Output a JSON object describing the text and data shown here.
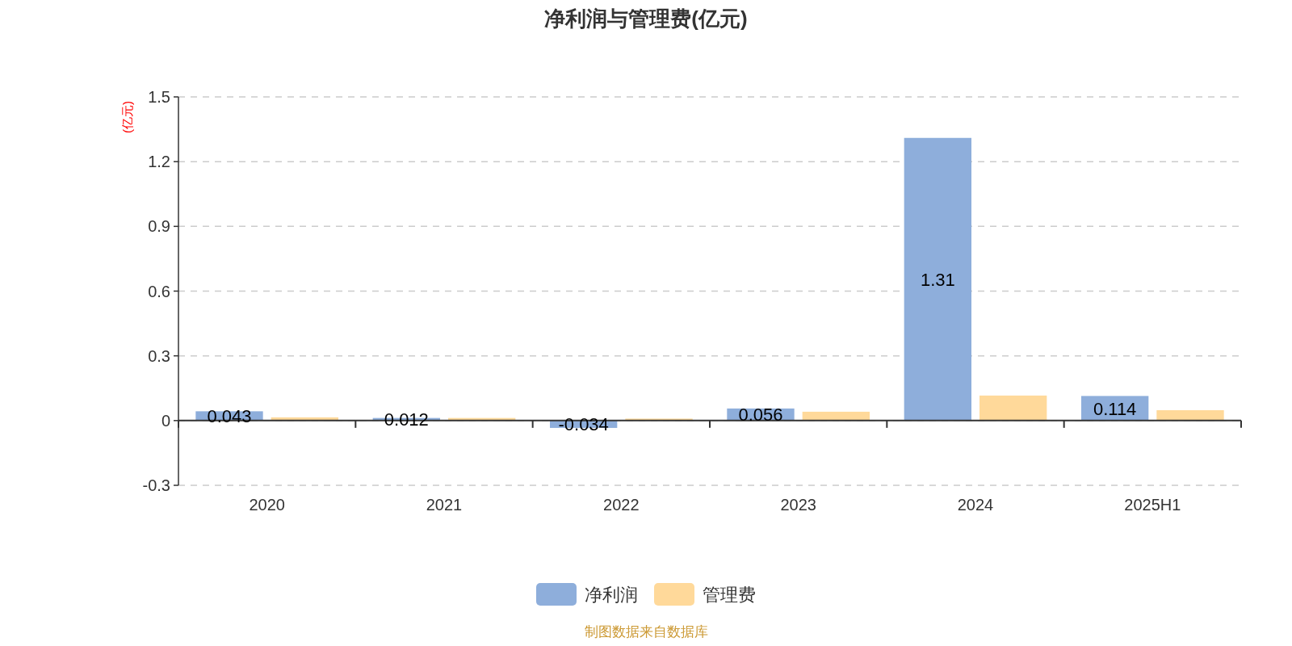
{
  "chart_data": {
    "type": "bar",
    "title": "净利润与管理费(亿元)",
    "ylabel": "(亿元)",
    "categories": [
      "2020",
      "2021",
      "2022",
      "2023",
      "2024",
      "2025H1"
    ],
    "series": [
      {
        "name": "净利润",
        "color": "#8eaedb",
        "values": [
          0.043,
          0.012,
          -0.034,
          0.056,
          1.31,
          0.114
        ],
        "value_labels": [
          "0.043",
          "0.012",
          "-0.034",
          "0.056",
          "1.31",
          "0.114"
        ]
      },
      {
        "name": "管理费",
        "color": "#ffd99a",
        "values": [
          0.015,
          0.012,
          0.009,
          0.041,
          0.116,
          0.048
        ]
      }
    ],
    "ylim": [
      -0.3,
      1.5
    ],
    "yticks": [
      -0.3,
      0,
      0.3,
      0.6,
      0.9,
      1.2,
      1.5
    ],
    "grid": "y",
    "legend": "bottom",
    "annotations": [
      "制图数据来自数据库"
    ]
  }
}
